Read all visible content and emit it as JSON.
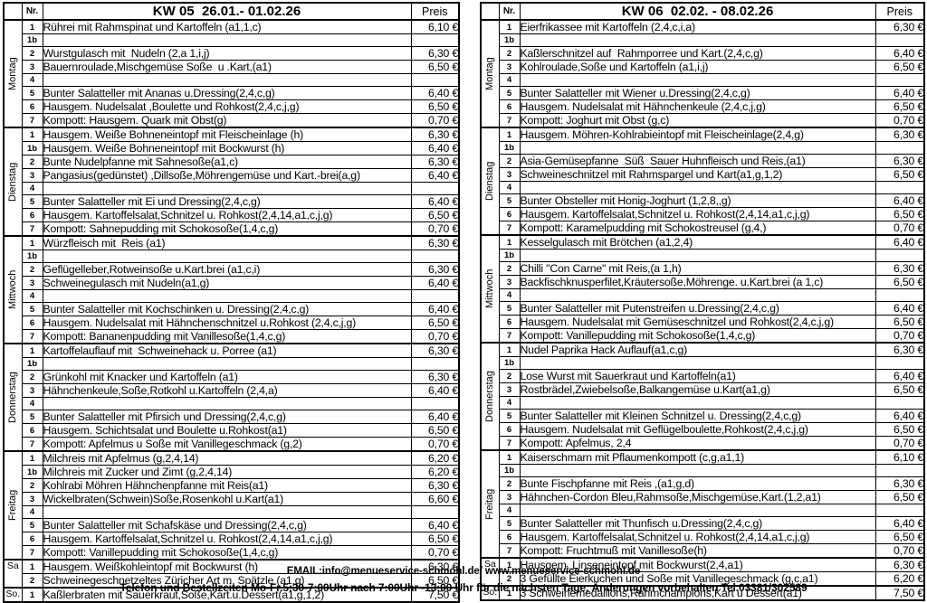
{
  "footer": {
    "email_line": "EMAIL:info@menueservice-schmohl.de/ www.menueservice-schmohl.de",
    "phone_line": "Telefon und Bestellzeiten Mo-Fr.5:30-7:00Uhr nach 7:00Uhr -13:00 Uhr für die nächsten Tage, Änderungen vorbehalten Tel.03381/302589"
  },
  "tables": [
    {
      "header": {
        "nr": "Nr.",
        "title": "KW 05  26.01.- 01.02.26",
        "price": "Preis"
      },
      "days": [
        {
          "label": "Montag",
          "orientation": "vertical",
          "rows": [
            {
              "nr": "1",
              "text": "Rührei mit Rahmspinat und Kartoffeln (a1,1,c)",
              "price": "6,10 €"
            },
            {
              "nr": "1b",
              "text": "",
              "price": ""
            },
            {
              "nr": "2",
              "text": "Wurstgulasch mit  Nudeln (2,a 1,i,j)",
              "price": "6,30 €"
            },
            {
              "nr": "3",
              "text": "Bauernroulade,Mischgemüse Soße  u .Kart,(a1)",
              "price": "6,50 €"
            },
            {
              "nr": "4",
              "text": "",
              "price": ""
            },
            {
              "nr": "5",
              "text": "Bunter Salatteller mit Ananas u.Dressing(2,4,c,g)",
              "price": "6,40 €"
            },
            {
              "nr": "6",
              "text": "Hausgem. Nudelsalat ,Boulette und Rohkost(2,4,c,j,g)",
              "price": "6,50 €"
            },
            {
              "nr": "7",
              "text": "Kompott: Hausgem. Quark mit Obst(g)",
              "price": "0,70 €"
            }
          ]
        },
        {
          "label": "Dienstag",
          "orientation": "vertical",
          "rows": [
            {
              "nr": "1",
              "text": "Hausgem. Weiße Bohneneintopf mit Fleischeinlage (h)",
              "price": "6,30 €"
            },
            {
              "nr": "1b",
              "text": "Hausgem. Weiße Bohneneintopf mit Bockwurst (h)",
              "price": "6,40 €"
            },
            {
              "nr": "2",
              "text": "Bunte Nudelpfanne mit Sahnesoße(a1,c)",
              "price": "6,30 €"
            },
            {
              "nr": "3",
              "text": "Pangasius(gedünstet) ,Dillsoße,Möhrengemüse und Kart.-brei(a,g)",
              "price": "6,40 €"
            },
            {
              "nr": "4",
              "text": "",
              "price": ""
            },
            {
              "nr": "5",
              "text": "Bunter Salatteller mit Ei und Dressing(2,4,c,g)",
              "price": "6,40 €"
            },
            {
              "nr": "6",
              "text": "Hausgem. Kartoffelsalat,Schnitzel u. Rohkost(2,4,14,a1,c,j,g)",
              "price": "6,50 €"
            },
            {
              "nr": "7",
              "text": "Kompott: Sahnepudding mit Schokosoße(1,4,c,g)",
              "price": "0,70 €"
            }
          ]
        },
        {
          "label": "Mittwoch",
          "orientation": "vertical",
          "rows": [
            {
              "nr": "1",
              "text": "Würzfleisch mit  Reis (a1)",
              "price": "6,30 €"
            },
            {
              "nr": "1b",
              "text": "",
              "price": ""
            },
            {
              "nr": "2",
              "text": "Geflügelleber,Rotweinsoße u.Kart.brei (a1,c,i)",
              "price": "6,30 €"
            },
            {
              "nr": "3",
              "text": "Schweinegulasch mit Nudeln(a1,g)",
              "price": "6,40 €"
            },
            {
              "nr": "4",
              "text": "",
              "price": ""
            },
            {
              "nr": "5",
              "text": "Bunter Salatteller mit Kochschinken u. Dressing(2,4,c,g)",
              "price": "6,40 €"
            },
            {
              "nr": "6",
              "text": "Hausgem. Nudelsalat mit Hähnchenschnitzel u.Rohkost (2,4,c,j,g)",
              "price": "6,50 €"
            },
            {
              "nr": "7",
              "text": "Kompott: Bananenpudding mit Vanillesoße(1,4,c,g)",
              "price": "0,70 €"
            }
          ]
        },
        {
          "label": "Donnerstag",
          "orientation": "vertical",
          "rows": [
            {
              "nr": "1",
              "text": "Kartoffelauflauf mit  Schweinehack u. Porree (a1)",
              "price": "6,30 €"
            },
            {
              "nr": "1b",
              "text": "",
              "price": ""
            },
            {
              "nr": "2",
              "text": "Grünkohl mit Knacker und Kartoffeln (a1)",
              "price": "6,30 €"
            },
            {
              "nr": "3",
              "text": "Hähnchenkeule,Soße,Rotkohl u.Kartoffeln (2,4,a)",
              "price": "6,40 €"
            },
            {
              "nr": "4",
              "text": "",
              "price": ""
            },
            {
              "nr": "5",
              "text": "Bunter Salatteller mit Pfirsich und Dressing(2,4,c,g)",
              "price": "6,40 €"
            },
            {
              "nr": "6",
              "text": "Hausgem. Schichtsalat und Boulette u.Rohkost(a1)",
              "price": "6,50 €"
            },
            {
              "nr": "7",
              "text": "Kompott: Apfelmus u Soße mit Vanillegeschmack (g,2)",
              "price": "0,70 €"
            }
          ]
        },
        {
          "label": "Freitag",
          "orientation": "vertical",
          "rows": [
            {
              "nr": "1",
              "text": "Milchreis mit Apfelmus (g,2,4,14)",
              "price": "6,20 €"
            },
            {
              "nr": "1b",
              "text": "Milchreis mit Zucker und Zimt (g,2,4,14)",
              "price": "6,20 €"
            },
            {
              "nr": "2",
              "text": "Kohlrabi Möhren Hähnchenpfanne mit Reis(a1)",
              "price": "6,30 €"
            },
            {
              "nr": "3",
              "text": "Wickelbraten(Schwein)Soße,Rosenkohl u.Kart(a1)",
              "price": "6,60 €"
            },
            {
              "nr": "4",
              "text": "",
              "price": ""
            },
            {
              "nr": "5",
              "text": "Bunter Salatteller mit Schafskäse und Dressing(2,4,c,g)",
              "price": "6,40 €"
            },
            {
              "nr": "6",
              "text": "Hausgem. Kartoffelsalat,Schnitzel u. Rohkost(2,4,14,a1,c,j,g)",
              "price": "6,50 €"
            },
            {
              "nr": "7",
              "text": "Kompott: Vanillepudding mit Schokosoße(1,4,c,g)",
              "price": "0,70 €"
            }
          ]
        },
        {
          "label": "Sa",
          "orientation": "horizontal",
          "rows": [
            {
              "nr": "1",
              "text": "Hausgem. Weißkohleintopf mit Bockwurst (h)",
              "price": "6,30 €"
            },
            {
              "nr": "2",
              "text": "Schweinegeschnetzeltes Züricher Art m. Spätzle (a1,g)",
              "price": "6,50 €"
            }
          ]
        },
        {
          "label": "So.",
          "orientation": "horizontal",
          "rows": [
            {
              "nr": "1",
              "text": "Kaßlerbraten mit Sauerkraut,Soße,Kart.u.Dessert(a1,g,1,2)",
              "price": "7,50 €"
            }
          ]
        }
      ]
    },
    {
      "header": {
        "nr": "Nr.",
        "title": "KW 06  02.02. - 08.02.26",
        "price": "Preis"
      },
      "days": [
        {
          "label": "Montag",
          "orientation": "vertical",
          "rows": [
            {
              "nr": "1",
              "text": "Eierfrikassee mit Kartoffeln (2,4,c,i,a)",
              "price": "6,30 €"
            },
            {
              "nr": "1b",
              "text": "",
              "price": ""
            },
            {
              "nr": "2",
              "text": "Kaßlerschnitzel auf  Rahmporree und Kart.(2,4,c,g)",
              "price": "6,40 €"
            },
            {
              "nr": "3",
              "text": "Kohlroulade,Soße und Kartoffeln (a1,i,j)",
              "price": "6,50 €"
            },
            {
              "nr": "4",
              "text": "",
              "price": ""
            },
            {
              "nr": "5",
              "text": "Bunter Salatteller mit Wiener u.Dressing(2,4,c,g)",
              "price": "6,40 €"
            },
            {
              "nr": "6",
              "text": "Hausgem. Nudelsalat mit Hähnchenkeule (2,4,c,j,g)",
              "price": "6,50 €"
            },
            {
              "nr": "7",
              "text": "Kompott: Joghurt mit Obst (g,c)",
              "price": "0,70 €"
            }
          ]
        },
        {
          "label": "Dienstag",
          "orientation": "vertical",
          "rows": [
            {
              "nr": "1",
              "text": "Hausgem. Möhren-Kohlrabieintopf mit Fleischeinlage(2,4,g)",
              "price": "6,30 €"
            },
            {
              "nr": "1b",
              "text": "",
              "price": ""
            },
            {
              "nr": "2",
              "text": "Asia-Gemüsepfanne  Süß  Sauer Huhnfleisch und Reis,(a1)",
              "price": "6,30 €"
            },
            {
              "nr": "3",
              "text": "Schweineschnitzel mit Rahmspargel und Kart(a1,g,1,2)",
              "price": "6,50 €"
            },
            {
              "nr": "4",
              "text": "",
              "price": ""
            },
            {
              "nr": "5",
              "text": "Bunter Obsteller mit Honig-Joghurt (1,2,8,,g)",
              "price": "6,40 €"
            },
            {
              "nr": "6",
              "text": "Hausgem. Kartoffelsalat,Schnitzel u. Rohkost(2,4,14,a1,c,j,g)",
              "price": "6,50 €"
            },
            {
              "nr": "7",
              "text": "Kompott: Karamelpudding mit Schokostreusel (g,4,)",
              "price": "0,70 €"
            }
          ]
        },
        {
          "label": "Mittwoch",
          "orientation": "vertical",
          "rows": [
            {
              "nr": "1",
              "text": "Kesselgulasch mit Brötchen (a1,2,4)",
              "price": "6,40 €"
            },
            {
              "nr": "1b",
              "text": "",
              "price": ""
            },
            {
              "nr": "2",
              "text": "Chilli \"Con Carne\" mit Reis,(a 1,h)",
              "price": "6,30 €"
            },
            {
              "nr": "3",
              "text": "Backfischknusperfilet,Kräutersoße,Möhrenge. u.Kart.brei (a 1,c)",
              "price": "6,50 €"
            },
            {
              "nr": "4",
              "text": "",
              "price": ""
            },
            {
              "nr": "5",
              "text": "Bunter Salatteller mit Putenstreifen u.Dressing(2,4,c,g)",
              "price": "6,40 €"
            },
            {
              "nr": "6",
              "text": "Hausgem. Nudelsalat mit Gemüseschnitzel und Rohkost(2,4,c,j,g)",
              "price": "6,50 €"
            },
            {
              "nr": "7",
              "text": "Kompott: Vanillepudding mit Schokosoße(1,4,c,g)",
              "price": "0,70 €"
            }
          ]
        },
        {
          "label": "Donnerstag",
          "orientation": "vertical",
          "rows": [
            {
              "nr": "1",
              "text": "Nudel Paprika Hack Auflauf(a1,c,g)",
              "price": "6,30 €"
            },
            {
              "nr": "1b",
              "text": "",
              "price": ""
            },
            {
              "nr": "2",
              "text": "Lose Wurst mit Sauerkraut und Kartoffeln(a1)",
              "price": "6,40 €"
            },
            {
              "nr": "3",
              "text": "Rostbrädel,Zwiebelsoße,Balkangemüse u.Kart(a1,g)",
              "price": "6,50 €"
            },
            {
              "nr": "4",
              "text": "",
              "price": ""
            },
            {
              "nr": "5",
              "text": "Bunter Salatteller mit Kleinen Schnitzel u. Dressing(2,4,c,g)",
              "price": "6,40 €"
            },
            {
              "nr": "6",
              "text": "Hausgem. Nudelsalat mit Geflügelboulette,Rohkost(2,4,c,j,g)",
              "price": "6,50 €"
            },
            {
              "nr": "7",
              "text": "Kompott: Apfelmus, 2,4",
              "price": "0,70 €"
            }
          ]
        },
        {
          "label": "Freitag",
          "orientation": "vertical",
          "rows": [
            {
              "nr": "1",
              "text": "Kaiserschmarn mit Pflaumenkompott (c,g,a1,1)",
              "price": "6,10 €"
            },
            {
              "nr": "1b",
              "text": "",
              "price": ""
            },
            {
              "nr": "2",
              "text": "Bunte Fischpfanne mit Reis ,(a1,g,d)",
              "price": "6,30 €"
            },
            {
              "nr": "3",
              "text": "Hähnchen-Cordon Bleu,Rahmsoße,Mischgemüse,Kart.(1,2,a1)",
              "price": "6,50 €"
            },
            {
              "nr": "4",
              "text": "",
              "price": ""
            },
            {
              "nr": "5",
              "text": "Bunter Salatteller mit Thunfisch u.Dressing(2,4,c,g)",
              "price": "6,40 €"
            },
            {
              "nr": "6",
              "text": "Hausgem. Kartoffelsalat,Schnitzel u. Rohkost(2,4,14,a1,c,j,g)",
              "price": "6,50 €"
            },
            {
              "nr": "7",
              "text": "Kompott: Fruchtmuß mit Vanillesoße(h)",
              "price": "0,70 €"
            }
          ]
        },
        {
          "label": "Sa",
          "orientation": "horizontal",
          "rows": [
            {
              "nr": "1",
              "text": "Hausgem. Linseneintopf mit Bockwurst(2,4,a1)",
              "price": "6,30 €"
            },
            {
              "nr": "2",
              "text": "3 Gefüllte Eierkuchen und Soße mit Vanillegeschmack (g,c,a1)",
              "price": "6,20 €"
            }
          ]
        },
        {
          "label": "So.",
          "orientation": "horizontal",
          "rows": [
            {
              "nr": "1",
              "text": "3 Schweinemedaillons,Rahmchampions,Kart u Dessert(a1)",
              "price": "7,50 €"
            }
          ]
        }
      ]
    }
  ]
}
